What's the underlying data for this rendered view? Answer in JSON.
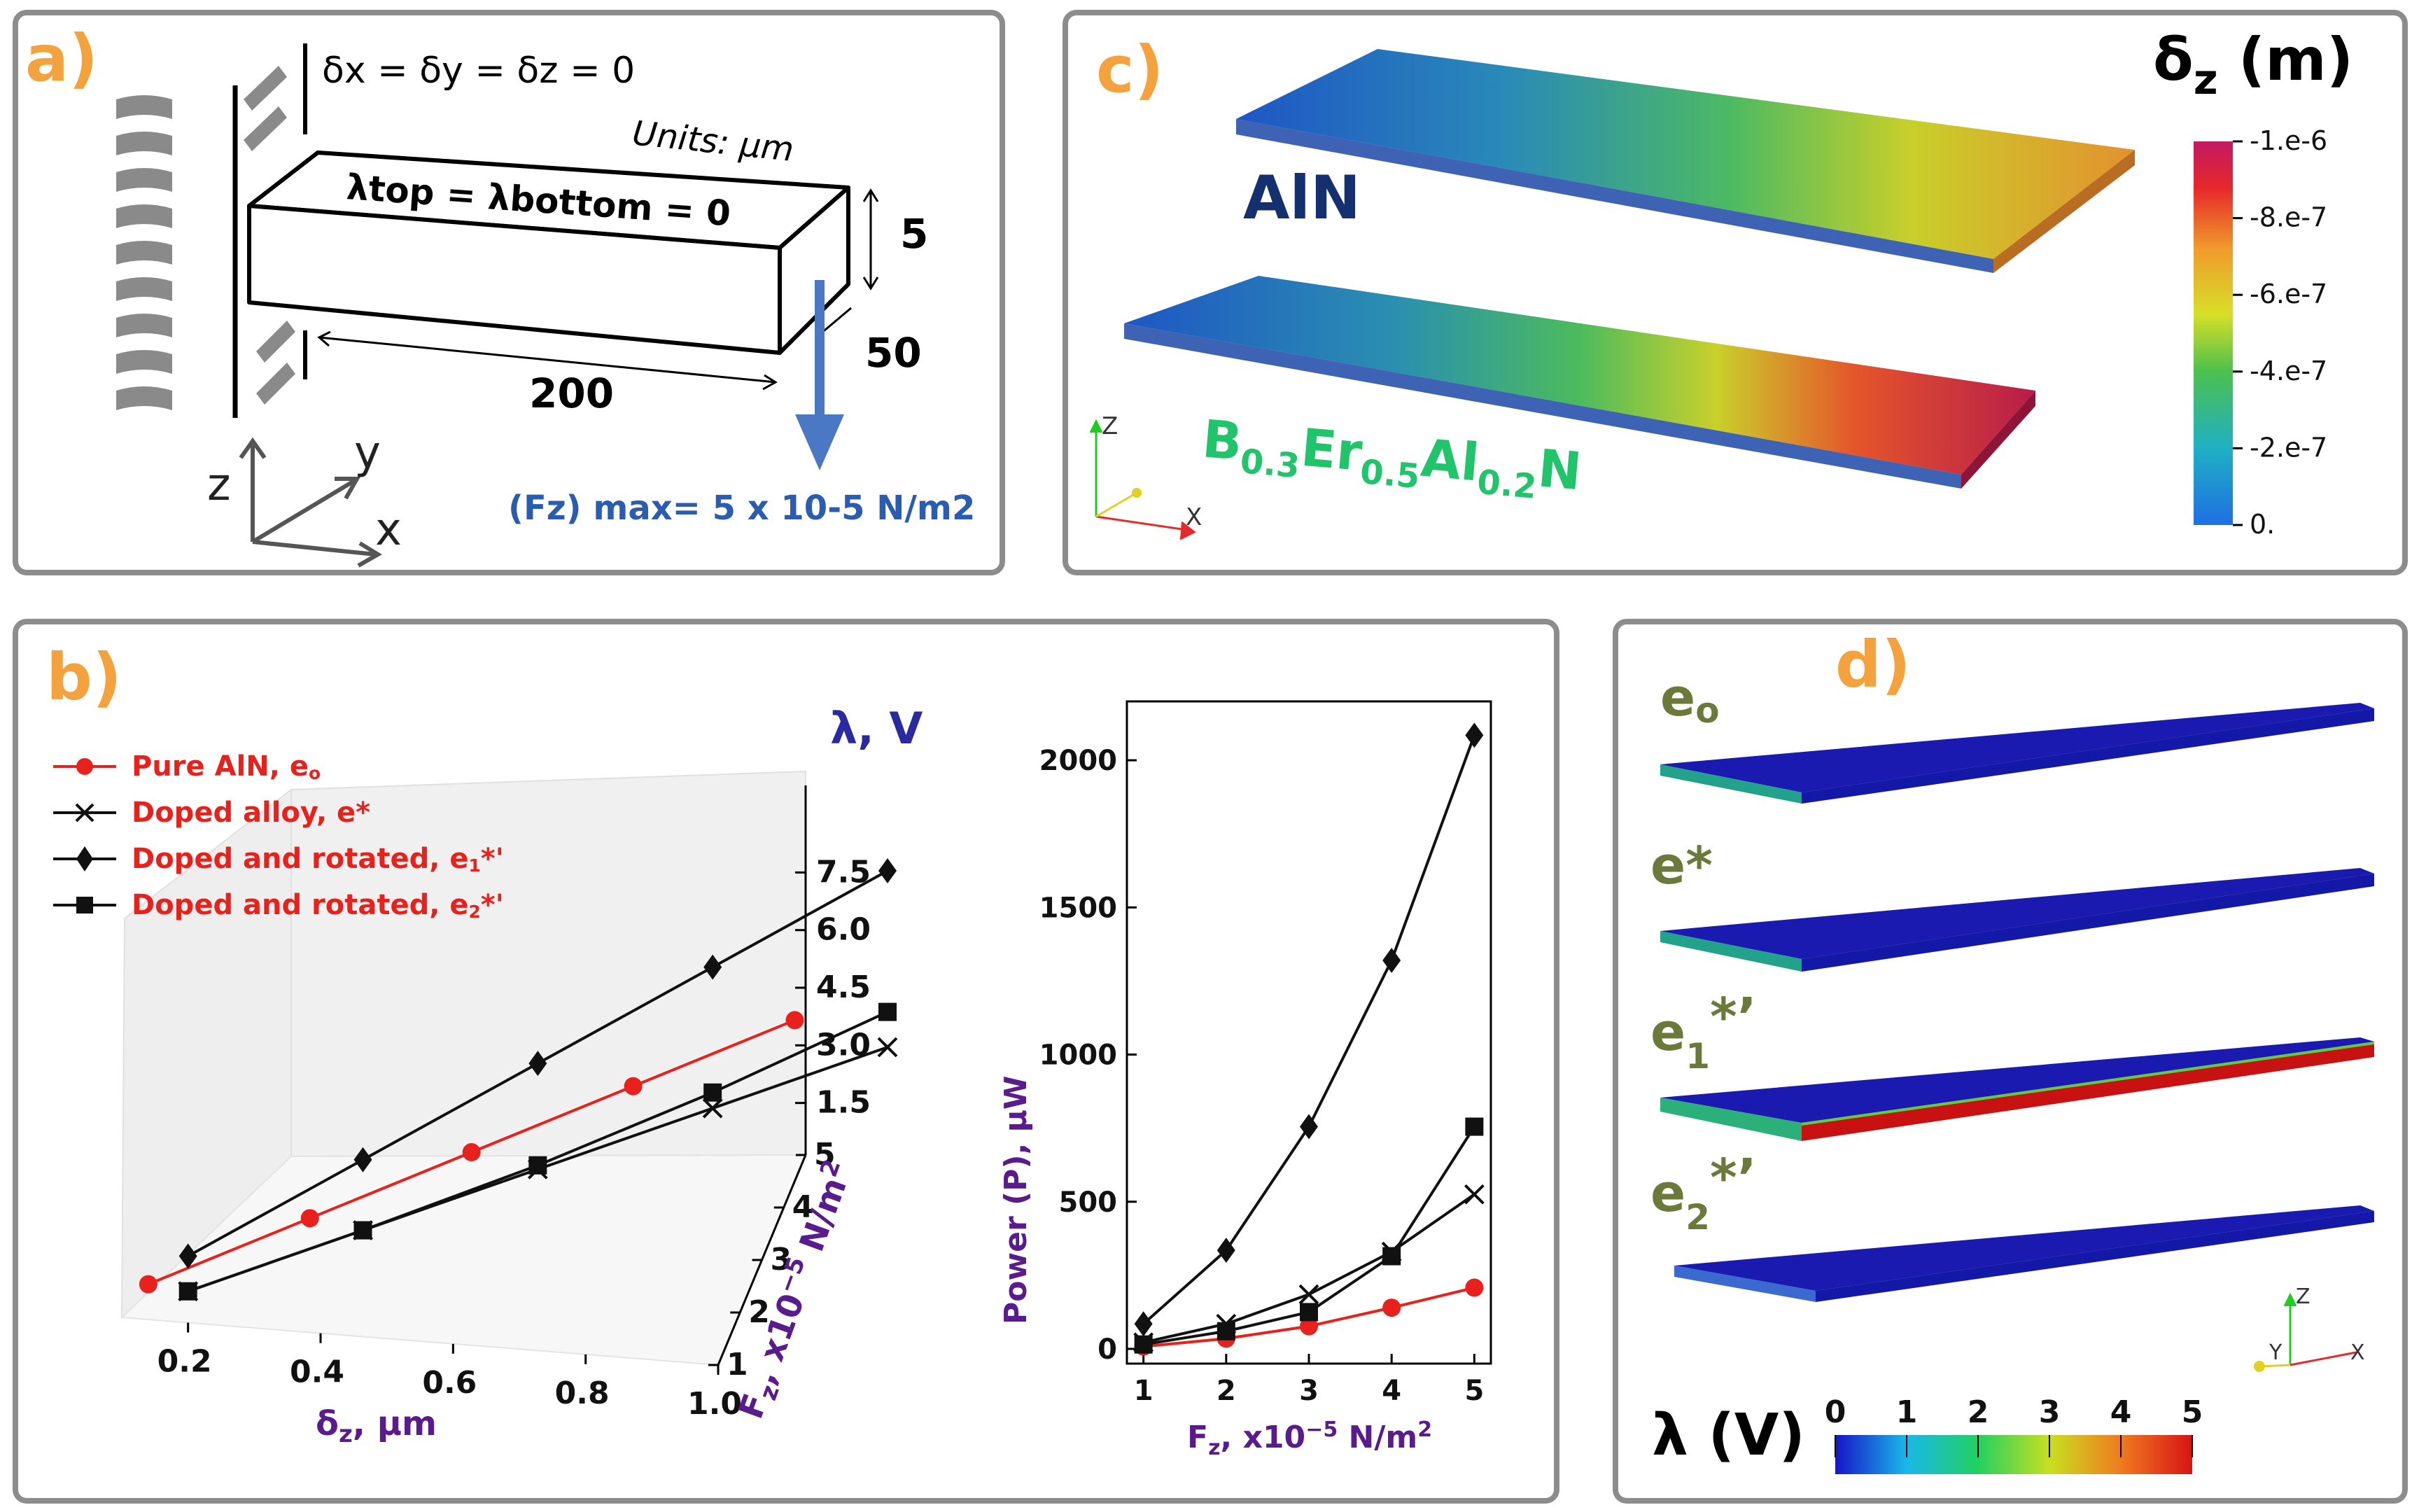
{
  "panels": {
    "a": "a)",
    "b": "b)",
    "c": "c)",
    "d": "d)"
  },
  "panel_a": {
    "boundary": "δx = δy = δz  = 0",
    "units": "Units: μm",
    "lambda_cond": "λtop =  λbottom = 0",
    "dims": {
      "height": "5",
      "width": "50",
      "length": "200"
    },
    "axes": {
      "x": "x",
      "y": "y",
      "z": "z"
    },
    "force": "(Fz) max= 5 x 10-5 N/m2"
  },
  "panel_c": {
    "materials": [
      "AlN",
      "B0.3Er0.5Al0.2N"
    ],
    "colorbar_title": "δz (m)",
    "colorbar_ticks": [
      "-1.e-6",
      "-8.e-7",
      "-6.e-7",
      "-4.e-7",
      "-2.e-7",
      "0."
    ],
    "triad": {
      "x": "X",
      "z": "Z"
    }
  },
  "panel_d": {
    "rows": [
      "eo",
      "e*",
      "e1*'",
      "e2*'"
    ],
    "colorbar_title": "λ (V)",
    "colorbar_ticks": [
      "0",
      "1",
      "2",
      "3",
      "4",
      "5"
    ],
    "triad": {
      "x": "X",
      "y": "Y",
      "z": "Z"
    }
  },
  "chart_data": [
    {
      "type": "line",
      "subtype": "3d-line",
      "title": "",
      "xlabel": "δz,  μm",
      "ylabel": "Fz,  x10−5 N/m2",
      "zlabel": "λ, V",
      "x_ticks": [
        "0.2",
        "0.4",
        "0.6",
        "0.8",
        "1.0"
      ],
      "y_ticks": [
        "1",
        "2",
        "3",
        "4",
        "5"
      ],
      "z_ticks": [
        "1.5",
        "3.0",
        "4.5",
        "6.0",
        "7.5"
      ],
      "legend_position": "top-left",
      "series": [
        {
          "name": "Pure AlN, eo",
          "color": "#e8211c",
          "marker": "circle",
          "x": [
            0.14,
            0.32,
            0.5,
            0.68,
            0.86
          ],
          "y": [
            1,
            2,
            3,
            4,
            5
          ],
          "z": [
            0.9,
            1.8,
            2.7,
            3.6,
            4.5
          ]
        },
        {
          "name": "Doped alloy, e*",
          "color": "#111111",
          "marker": "x",
          "x": [
            0.2,
            0.4,
            0.6,
            0.8,
            1.0
          ],
          "y": [
            1,
            2,
            3,
            4,
            5
          ],
          "z": [
            0.8,
            1.6,
            2.4,
            3.2,
            4.0
          ]
        },
        {
          "name": "Doped and rotated, e1*'",
          "color": "#111111",
          "marker": "diamond",
          "x": [
            0.2,
            0.4,
            0.6,
            0.8,
            1.0
          ],
          "y": [
            1,
            2,
            3,
            4,
            5
          ],
          "z": [
            1.7,
            3.4,
            5.1,
            6.8,
            8.5
          ]
        },
        {
          "name": "Doped and rotated, e2*'",
          "color": "#111111",
          "marker": "square",
          "x": [
            0.2,
            0.4,
            0.6,
            0.8,
            1.0
          ],
          "y": [
            1,
            2,
            3,
            4,
            5
          ],
          "z": [
            0.8,
            1.6,
            2.5,
            3.6,
            4.9
          ]
        }
      ]
    },
    {
      "type": "line",
      "title": "",
      "xlabel": "Fz,  x10−5 N/m2",
      "ylabel": "Power (P), μW",
      "xlim": [
        0.8,
        5.2
      ],
      "ylim": [
        -50,
        2200
      ],
      "x": [
        1,
        2,
        3,
        4,
        5
      ],
      "x_ticks": [
        1,
        2,
        3,
        4,
        5
      ],
      "y_ticks": [
        0,
        500,
        1000,
        1500,
        2000
      ],
      "series": [
        {
          "name": "Pure AlN, eo",
          "color": "#e8211c",
          "marker": "circle",
          "values": [
            8,
            35,
            77,
            140,
            208
          ]
        },
        {
          "name": "Doped alloy, e*",
          "color": "#111111",
          "marker": "x",
          "values": [
            22,
            85,
            185,
            330,
            525
          ]
        },
        {
          "name": "Doped and rotated, e1*'",
          "color": "#111111",
          "marker": "diamond",
          "values": [
            85,
            335,
            755,
            1320,
            2085
          ]
        },
        {
          "name": "Doped and rotated, e2*'",
          "color": "#111111",
          "marker": "square",
          "values": [
            15,
            60,
            125,
            315,
            755
          ]
        }
      ]
    }
  ]
}
